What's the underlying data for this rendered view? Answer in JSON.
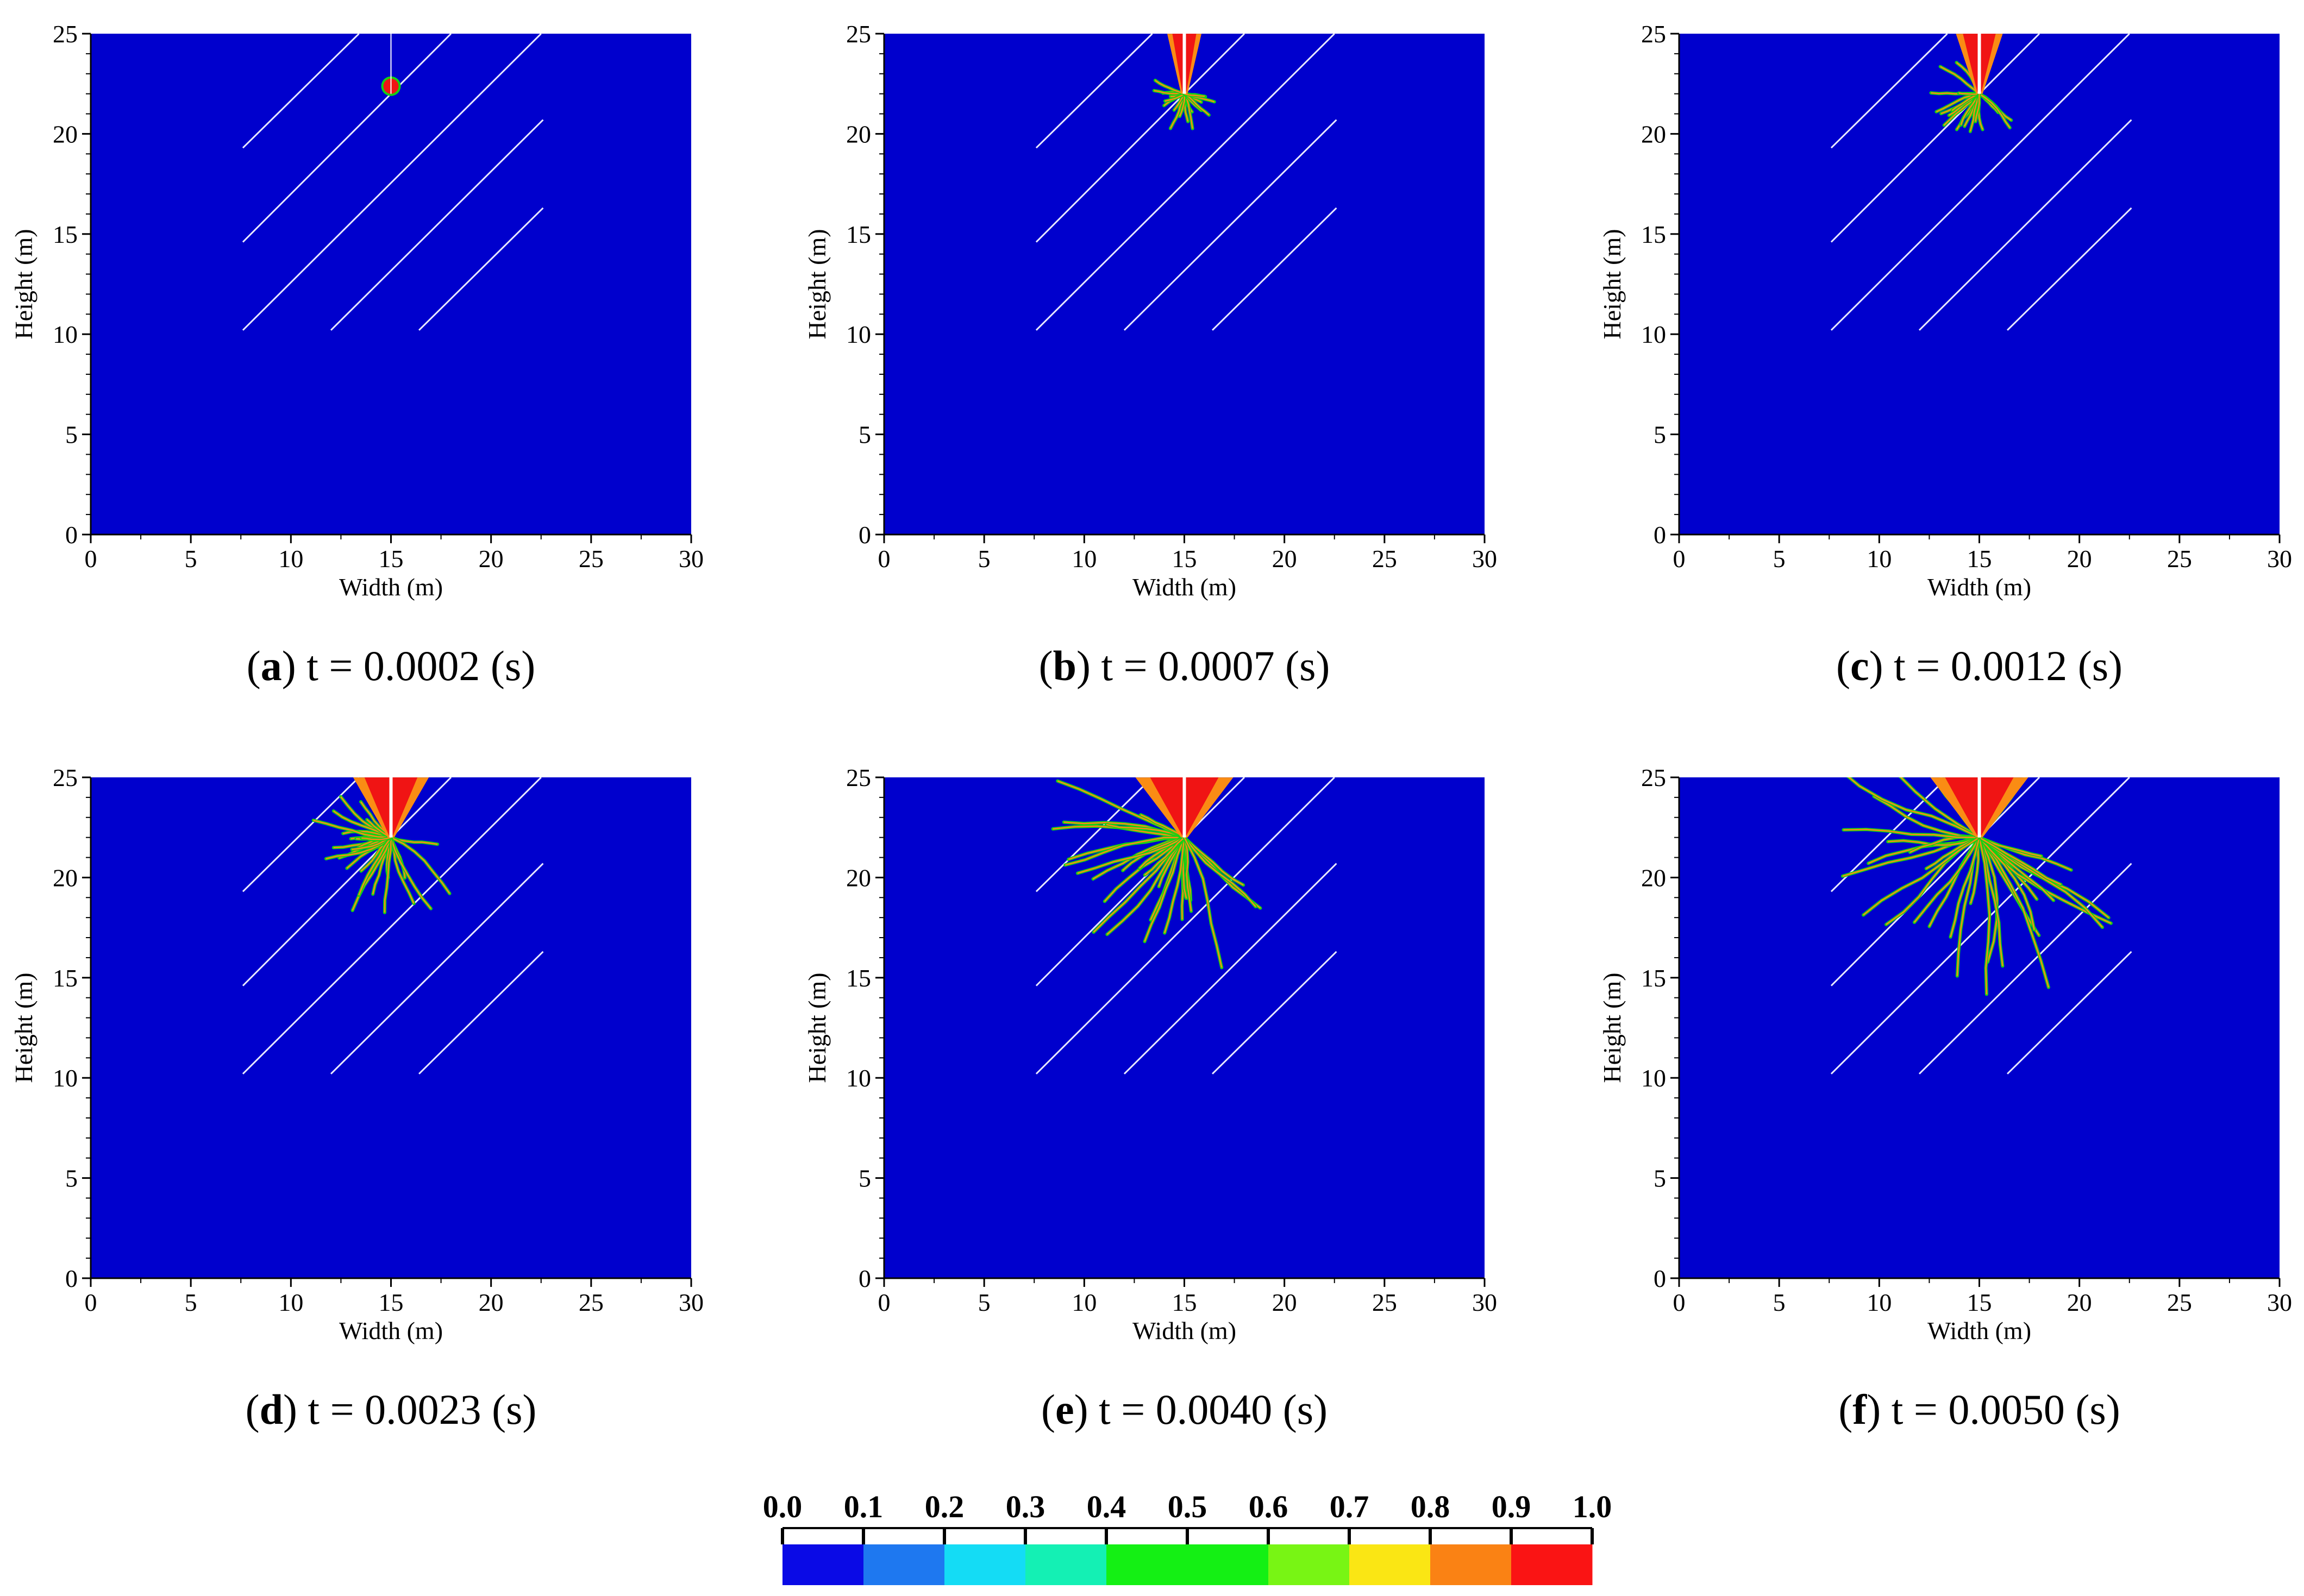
{
  "chart_data": {
    "type": "heatmap",
    "panels": [
      {
        "id": "a",
        "letter": "a",
        "caption": "t = 0.0002 (s)",
        "t_s": 0.0002
      },
      {
        "id": "b",
        "letter": "b",
        "caption": "t = 0.0007 (s)",
        "t_s": 0.0007
      },
      {
        "id": "c",
        "letter": "c",
        "caption": "t = 0.0012 (s)",
        "t_s": 0.0012
      },
      {
        "id": "d",
        "letter": "d",
        "caption": "t = 0.0023 (s)",
        "t_s": 0.0023
      },
      {
        "id": "e",
        "letter": "e",
        "caption": "t = 0.0040 (s)",
        "t_s": 0.004
      },
      {
        "id": "f",
        "letter": "f",
        "caption": "t = 0.0050 (s)",
        "t_s": 0.005
      }
    ],
    "xlabel": "Width (m)",
    "ylabel": "Height (m)",
    "xlim": [
      0,
      30
    ],
    "ylim": [
      0,
      25
    ],
    "xticks": [
      0,
      5,
      10,
      15,
      20,
      25,
      30
    ],
    "yticks": [
      0,
      5,
      10,
      15,
      20,
      25
    ],
    "borehole": {
      "x": 15,
      "y_bottom": 22,
      "y_top": 25
    },
    "joints": [
      {
        "x1": 7.6,
        "y1": 19.3,
        "x2": 13.4,
        "y2": 25.0
      },
      {
        "x1": 7.6,
        "y1": 14.6,
        "x2": 18.0,
        "y2": 25.0
      },
      {
        "x1": 7.6,
        "y1": 10.2,
        "x2": 22.5,
        "y2": 25.0
      },
      {
        "x1": 12.0,
        "y1": 10.2,
        "x2": 22.6,
        "y2": 20.7
      },
      {
        "x1": 16.4,
        "y1": 10.2,
        "x2": 22.6,
        "y2": 16.3
      }
    ],
    "damage_extent": [
      {
        "radius_m": 0.5
      },
      {
        "radius_m": 1.9
      },
      {
        "radius_m": 2.6
      },
      {
        "radius_m": 4.2
      },
      {
        "radius_m": 7.0
      },
      {
        "radius_m": 8.5
      }
    ],
    "colorbar": {
      "labels": [
        "0.0",
        "0.1",
        "0.2",
        "0.3",
        "0.4",
        "0.5",
        "0.6",
        "0.7",
        "0.8",
        "0.9",
        "1.0"
      ],
      "colors": [
        "#0a0ae6",
        "#1e78f0",
        "#14dcf5",
        "#14f0b4",
        "#14f014",
        "#14f014",
        "#78f514",
        "#fae614",
        "#fa8214",
        "#fa1414"
      ]
    },
    "colors": {
      "background": "#0000cd",
      "joint_line": "#e8e8ff",
      "damage_core": "#f01414",
      "damage_mid": "#fa8c14",
      "damage_outer": "#14d214",
      "borehole": "#ffffff"
    }
  }
}
